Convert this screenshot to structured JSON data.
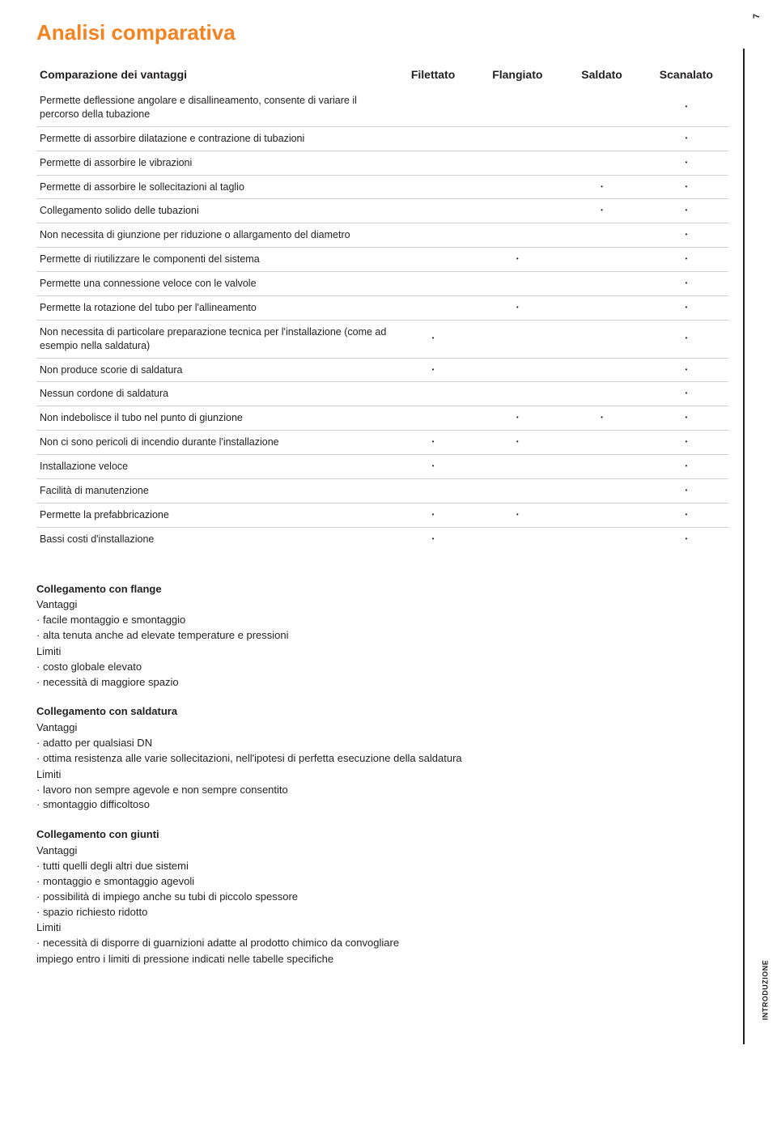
{
  "page_number": "7",
  "side_tab": "INTRODUZIONE",
  "title": "Analisi comparativa",
  "title_color": "#f58220",
  "rule_color": "#d0d0d0",
  "table": {
    "header_label": "Comparazione dei vantaggi",
    "columns": [
      "Filettato",
      "Flangiato",
      "Saldato",
      "Scanalato"
    ],
    "dot": "•",
    "rows": [
      {
        "label": "Permette deflessione angolare e disallineamento, consente di variare il percorso della tubazione",
        "marks": [
          false,
          false,
          false,
          true
        ]
      },
      {
        "label": "Permette di assorbire dilatazione e contrazione di tubazioni",
        "marks": [
          false,
          false,
          false,
          true
        ]
      },
      {
        "label": "Permette di assorbire le vibrazioni",
        "marks": [
          false,
          false,
          false,
          true
        ]
      },
      {
        "label": "Permette di assorbire le sollecitazioni al taglio",
        "marks": [
          false,
          false,
          true,
          true
        ]
      },
      {
        "label": "Collegamento solido delle tubazioni",
        "marks": [
          false,
          false,
          true,
          true
        ]
      },
      {
        "label": "Non necessita di giunzione per riduzione o allargamento del diametro",
        "marks": [
          false,
          false,
          false,
          true
        ]
      },
      {
        "label": "Permette di riutilizzare le componenti del sistema",
        "marks": [
          false,
          true,
          false,
          true
        ]
      },
      {
        "label": "Permette una connessione veloce con le valvole",
        "marks": [
          false,
          false,
          false,
          true
        ]
      },
      {
        "label": "Permette la rotazione del tubo per l'allineamento",
        "marks": [
          false,
          true,
          false,
          true
        ]
      },
      {
        "label": "Non necessita di particolare preparazione tecnica per l'installazione (come ad esempio nella saldatura)",
        "marks": [
          true,
          false,
          false,
          true
        ]
      },
      {
        "label": "Non produce scorie di saldatura",
        "marks": [
          true,
          false,
          false,
          true
        ]
      },
      {
        "label": "Nessun cordone di saldatura",
        "marks": [
          false,
          false,
          false,
          true
        ]
      },
      {
        "label": "Non indebolisce il tubo nel punto di giunzione",
        "marks": [
          false,
          true,
          true,
          true
        ]
      },
      {
        "label": "Non ci sono pericoli di incendio durante l'installazione",
        "marks": [
          true,
          true,
          false,
          true
        ]
      },
      {
        "label": "Installazione veloce",
        "marks": [
          true,
          false,
          false,
          true
        ]
      },
      {
        "label": "Facilità di manutenzione",
        "marks": [
          false,
          false,
          false,
          true
        ]
      },
      {
        "label": "Permette la prefabbricazione",
        "marks": [
          true,
          true,
          false,
          true
        ]
      },
      {
        "label": "Bassi costi d'installazione",
        "marks": [
          true,
          false,
          false,
          true
        ]
      }
    ]
  },
  "sections": [
    {
      "title": "Collegamento con flange",
      "groups": [
        {
          "label": "Vantaggi",
          "items": [
            "facile montaggio e smontaggio",
            "alta tenuta anche ad elevate temperature e pressioni"
          ]
        },
        {
          "label": "Limiti",
          "items": [
            "costo globale elevato",
            "necessità di maggiore spazio"
          ]
        }
      ]
    },
    {
      "title": "Collegamento con saldatura",
      "groups": [
        {
          "label": "Vantaggi",
          "items": [
            "adatto per qualsiasi DN",
            "ottima resistenza alle varie sollecitazioni, nell'ipotesi di perfetta esecuzione della saldatura"
          ]
        },
        {
          "label": "Limiti",
          "items": [
            "lavoro non sempre agevole e non sempre consentito",
            "smontaggio difficoltoso"
          ]
        }
      ]
    },
    {
      "title": "Collegamento con giunti",
      "groups": [
        {
          "label": "Vantaggi",
          "items": [
            "tutti quelli degli altri due sistemi",
            "montaggio e smontaggio agevoli",
            "possibilità di impiego anche su tubi di piccolo spessore",
            "spazio richiesto ridotto"
          ]
        },
        {
          "label": "Limiti",
          "items": [
            "necessità di disporre di guarnizioni adatte al prodotto chimico da convogliare"
          ]
        }
      ],
      "footer": "impiego entro i limiti di pressione indicati nelle tabelle specifiche"
    }
  ]
}
